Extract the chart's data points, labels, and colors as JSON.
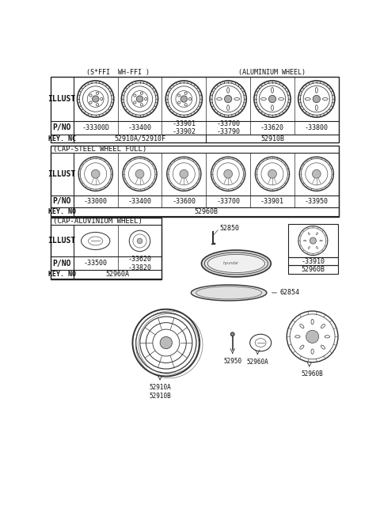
{
  "bg_color": "#ffffff",
  "border_color": "#222222",
  "text_color": "#111111",
  "section1_header_steel": "(S*FFI  WH-FFI )",
  "section1_header_alum": "(ALUMINIUM WHEEL)",
  "section1_illust_label": "ILLUST",
  "section1_pno_label": "P/NO",
  "section1_keyno_label": "KEY. NC",
  "section1_pno_values": [
    "-33300D",
    "-33400",
    "-33901\n-33902",
    "-33700\n-33790",
    "-33620",
    "-33800"
  ],
  "section1_keyno_col1": "52910A/52910F",
  "section1_keyno_col2": "52910B",
  "section1_keyno_split": 3,
  "section2_header": "(CAP-STEEL WHEEL FULL)",
  "section2_illust_label": "ILLUST",
  "section2_pno_label": "P/NO",
  "section2_keyno_label": "KEY. NO",
  "section2_pno_values": [
    "-33000",
    "-33400",
    "-33600",
    "-33700",
    "-33901",
    "-33950"
  ],
  "section2_keyno_value": "52960B",
  "section3_header": "(CAP-ALUVINIUM WHEEL)",
  "section3_illust_label": "ILLUST",
  "section3_pno_label": "P/NO",
  "section3_keyno_label": "KEY. NO",
  "section3_pno_col1": "-33500",
  "section3_pno_col2": "-33620\n-33820",
  "section3_keyno_value": "52960A",
  "label_52850": "52850",
  "label_62854": "62854",
  "label_minus33910": "-33910",
  "label_52960B_right": "52960B",
  "label_52910AB": "52910A\n52910B",
  "label_52950": "52950",
  "label_52960A_bot": "52960A",
  "label_52960B_bot": "52960B"
}
